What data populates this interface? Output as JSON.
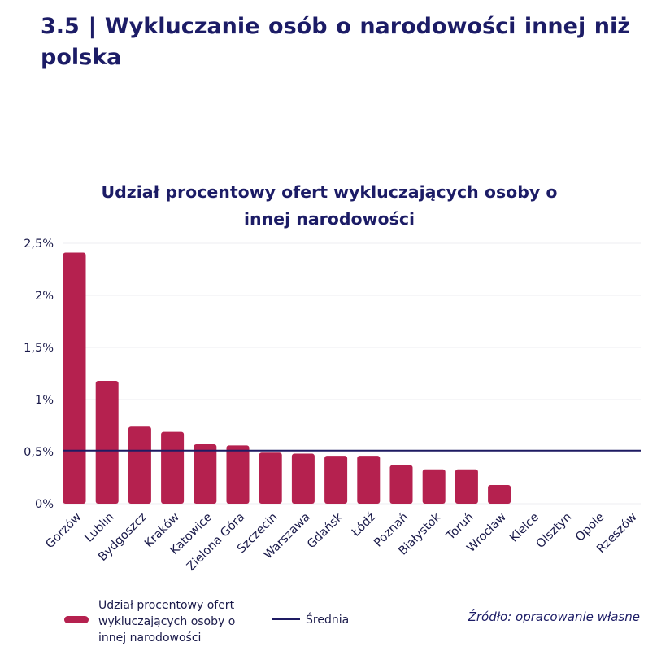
{
  "heading": "3.5 | Wykluczanie osób o narodowości innej niż polska",
  "chart_data": {
    "type": "bar",
    "title": "Udział procentowy ofert wykluczających osoby o innej narodowości",
    "categories": [
      "Gorzów",
      "Lublin",
      "Bydgoszcz",
      "Kraków",
      "Katowice",
      "Zielona Góra",
      "Szczecin",
      "Warszawa",
      "Gdańsk",
      "Łódź",
      "Poznań",
      "Białystok",
      "Toruń",
      "Wrocław",
      "Kielce",
      "Olsztyn",
      "Opole",
      "Rzeszów"
    ],
    "series": [
      {
        "name": "Udział procentowy ofert wykluczających osoby o innej narodowości",
        "type": "bar",
        "color": "#b5214f",
        "values": [
          2.41,
          1.18,
          0.74,
          0.69,
          0.57,
          0.56,
          0.49,
          0.48,
          0.46,
          0.46,
          0.37,
          0.33,
          0.33,
          0.18,
          0,
          0,
          0,
          0
        ]
      },
      {
        "name": "Średnia",
        "type": "line",
        "color": "#1e1b63",
        "value": 0.51
      }
    ],
    "ylim": [
      0,
      2.5
    ],
    "yticks": [
      0,
      0.5,
      1,
      1.5,
      2,
      2.5
    ],
    "ytick_labels": [
      "0%",
      "0,5%",
      "1%",
      "1,5%",
      "2%",
      "2,5%"
    ],
    "grid": true,
    "legend_position": "bottom-left"
  },
  "legend": {
    "bar_label": "Udział procentowy ofert wykluczających osoby o innej narodowości",
    "line_label": "Średnia"
  },
  "source": "Źródło: opracowanie własne"
}
